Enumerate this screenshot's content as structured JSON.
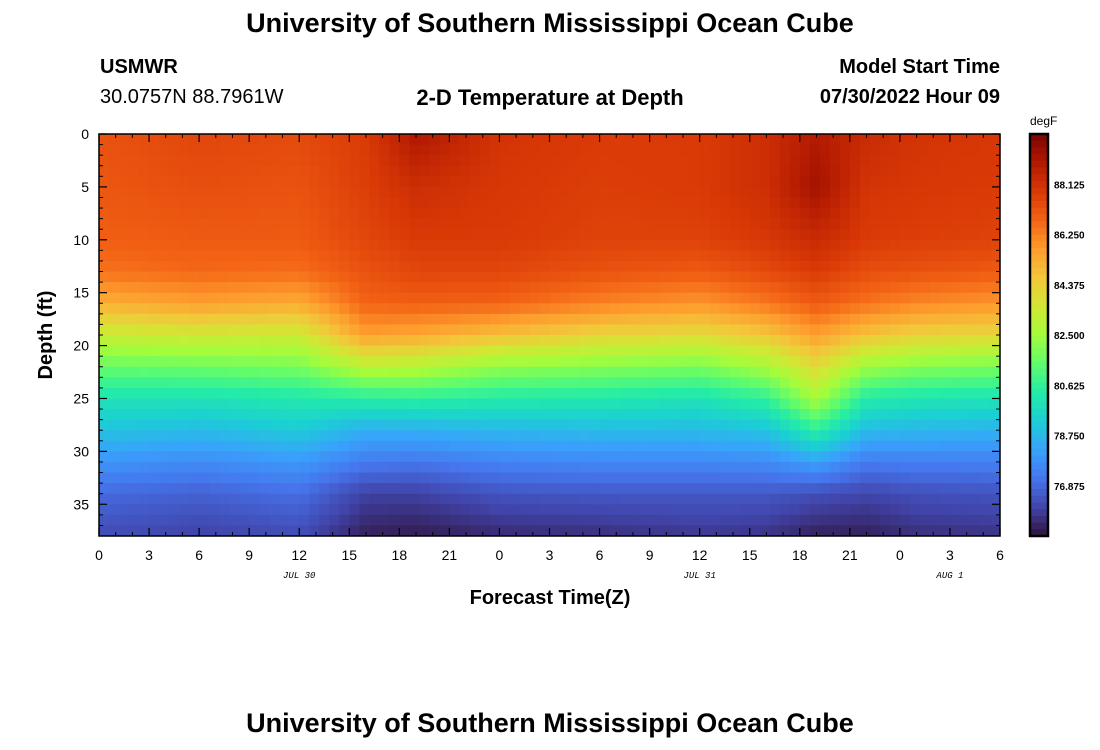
{
  "page": {
    "title": "University of Southern Mississippi Ocean Cube",
    "footer_title": "University of Southern Mississippi Ocean Cube",
    "station": "USMWR",
    "coords": "30.0757N  88.7961W",
    "start_label": "Model Start Time",
    "start_time": "07/30/2022 Hour 09"
  },
  "chart_data": {
    "type": "heatmap",
    "title": "2-D Temperature at Depth",
    "xlabel": "Forecast Time(Z)",
    "ylabel": "Depth (ft)",
    "units": "degF",
    "x_tick_labels": [
      "0",
      "3",
      "6",
      "9",
      "12",
      "15",
      "18",
      "21",
      "0",
      "3",
      "6",
      "9",
      "12",
      "15",
      "18",
      "21",
      "0",
      "3",
      "6"
    ],
    "x_range_hours": [
      0,
      54
    ],
    "y_range_ft": [
      0,
      38
    ],
    "y_ticks": [
      0,
      5,
      10,
      15,
      20,
      25,
      30,
      35
    ],
    "date_labels": [
      {
        "text": "JUL 30",
        "hour": 12
      },
      {
        "text": "JUL 31",
        "hour": 36
      },
      {
        "text": "AUG 1",
        "hour": 51
      }
    ],
    "colorbar_ticks": [
      "88.125",
      "86.250",
      "84.375",
      "82.500",
      "80.625",
      "78.750",
      "76.875"
    ],
    "colorbar_range": [
      75.0,
      90.0
    ],
    "colorscale": [
      "#30123b",
      "#4145ab",
      "#4675ed",
      "#39a2fc",
      "#1bcfd4",
      "#24eca6",
      "#61fc6c",
      "#a4fc3b",
      "#d1e834",
      "#f3c63a",
      "#fe9b2d",
      "#f36315",
      "#d93806",
      "#b11901",
      "#7a0403"
    ],
    "depth_profile_ft": [
      0,
      5,
      10,
      13,
      16,
      19,
      22,
      25,
      28,
      31,
      34,
      38
    ],
    "profile_times_h": [
      0,
      6,
      12,
      16,
      19,
      24,
      30,
      36,
      40,
      43,
      46,
      49,
      54
    ],
    "profiles_degF": [
      [
        87.2,
        87.1,
        86.9,
        86.5,
        85.2,
        83.3,
        81.5,
        80.0,
        79.0,
        77.9,
        76.9,
        76.2
      ],
      [
        87.5,
        87.3,
        87.0,
        86.7,
        85.6,
        83.5,
        81.6,
        80.0,
        78.8,
        77.7,
        76.7,
        76.0
      ],
      [
        87.4,
        87.2,
        87.0,
        86.6,
        85.3,
        83.4,
        81.8,
        80.2,
        79.2,
        78.0,
        77.0,
        76.2
      ],
      [
        87.8,
        87.7,
        87.5,
        87.2,
        86.8,
        85.6,
        83.0,
        80.4,
        78.5,
        77.3,
        76.0,
        75.3
      ],
      [
        89.0,
        88.2,
        87.8,
        87.5,
        86.9,
        85.4,
        82.9,
        80.5,
        78.5,
        77.2,
        76.0,
        75.2
      ],
      [
        88.0,
        87.9,
        87.8,
        87.5,
        86.8,
        84.8,
        82.2,
        80.3,
        78.7,
        77.5,
        76.4,
        75.5
      ],
      [
        87.8,
        87.7,
        87.6,
        87.2,
        86.2,
        84.2,
        82.0,
        80.2,
        78.8,
        77.6,
        76.5,
        75.6
      ],
      [
        87.8,
        87.8,
        87.6,
        87.0,
        85.8,
        84.0,
        81.8,
        80.0,
        78.8,
        77.6,
        76.5,
        75.8
      ],
      [
        88.2,
        88.2,
        87.9,
        87.4,
        86.4,
        84.6,
        82.6,
        80.6,
        79.0,
        77.7,
        76.5,
        75.7
      ],
      [
        88.9,
        89.2,
        88.3,
        87.8,
        87.0,
        85.6,
        84.0,
        82.6,
        80.5,
        78.2,
        76.3,
        75.3
      ],
      [
        88.3,
        88.0,
        87.8,
        87.3,
        86.5,
        84.7,
        82.4,
        80.3,
        78.8,
        77.3,
        76.1,
        75.3
      ],
      [
        88.0,
        87.9,
        87.7,
        87.2,
        86.1,
        84.3,
        82.0,
        80.1,
        78.7,
        77.4,
        76.3,
        75.6
      ],
      [
        87.9,
        87.8,
        87.6,
        87.0,
        85.8,
        84.1,
        81.8,
        80.0,
        78.6,
        77.4,
        76.4,
        75.7
      ]
    ]
  }
}
